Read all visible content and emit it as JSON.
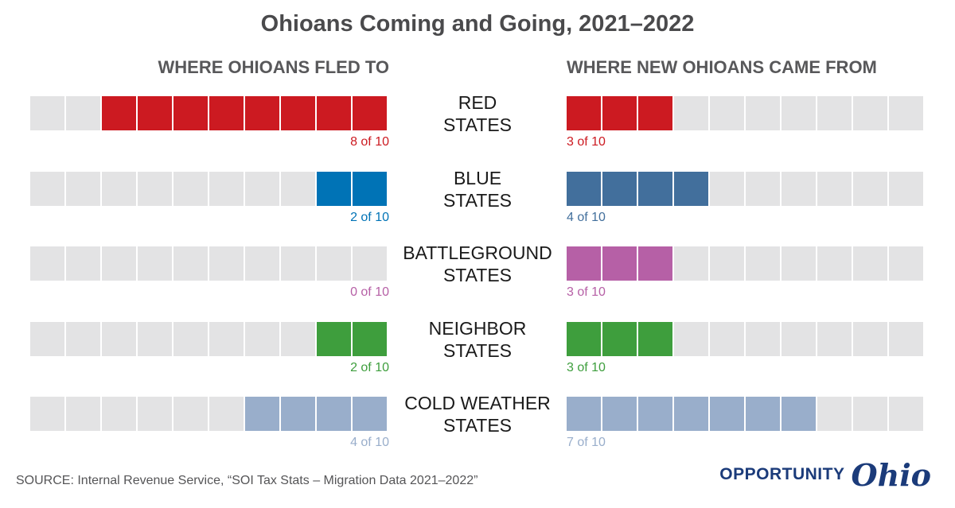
{
  "title": "Ohioans Coming and Going, 2021–2022",
  "source": "SOURCE: Internal Revenue Service, “SOI Tax Stats – Migration Data 2021–2022”",
  "logo": {
    "part1": "OPPORTUNITY",
    "part2": "Ohio"
  },
  "colors": {
    "empty": "#e3e3e4"
  },
  "chart_data": {
    "type": "table",
    "units": 10,
    "panels": [
      {
        "title": "WHERE OHIOANS FLED TO",
        "direction": "fill-from-right"
      },
      {
        "title": "WHERE NEW OHIOANS CAME FROM",
        "direction": "fill-from-left"
      }
    ],
    "categories": [
      "RED\nSTATES",
      "BLUE\nSTATES",
      "BATTLEGROUND\nSTATES",
      "NEIGHBOR\nSTATES",
      "COLD WEATHER\nSTATES"
    ],
    "colors": [
      "#cc1a21",
      "#0073b6",
      "#b660a6",
      "#3e9e3d",
      "#99aecb"
    ],
    "series": [
      {
        "values": [
          8,
          2,
          0,
          2,
          4
        ],
        "labels": [
          "8 of 10",
          "2 of 10",
          "0 of 10",
          "2 of 10",
          "4 of 10"
        ]
      },
      {
        "values": [
          3,
          4,
          3,
          3,
          7
        ],
        "labels": [
          "3 of 10",
          "4 of 10",
          "3 of 10",
          "3 of 10",
          "7 of 10"
        ]
      }
    ],
    "right_colors": [
      "#cc1a21",
      "#426f9c",
      "#b660a6",
      "#3e9e3d",
      "#99aecb"
    ]
  }
}
